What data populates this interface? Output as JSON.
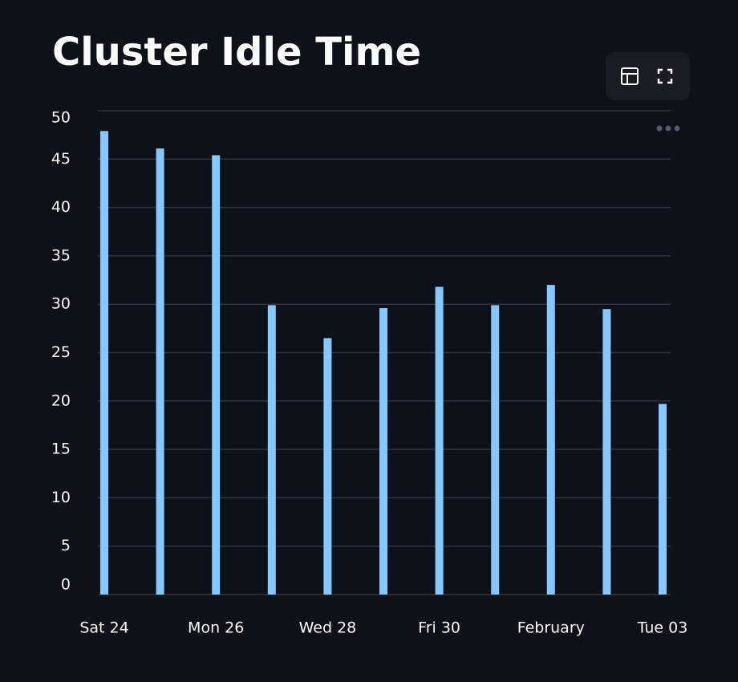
{
  "chart_data": {
    "type": "bar",
    "title": "Cluster Idle Time",
    "categories": [
      "Sat 24",
      null,
      "Mon 26",
      null,
      "Wed 28",
      null,
      "Fri 30",
      null,
      "February",
      null,
      "Tue 03"
    ],
    "values": [
      47.9,
      46.1,
      45.4,
      29.9,
      26.5,
      29.6,
      31.8,
      29.9,
      32.0,
      29.5,
      19.7
    ],
    "color": "#83c9ff",
    "ylim": [
      0,
      50
    ],
    "yticks": [
      0,
      5,
      10,
      15,
      20,
      25,
      30,
      35,
      40,
      45,
      50
    ],
    "grid": true
  }
}
